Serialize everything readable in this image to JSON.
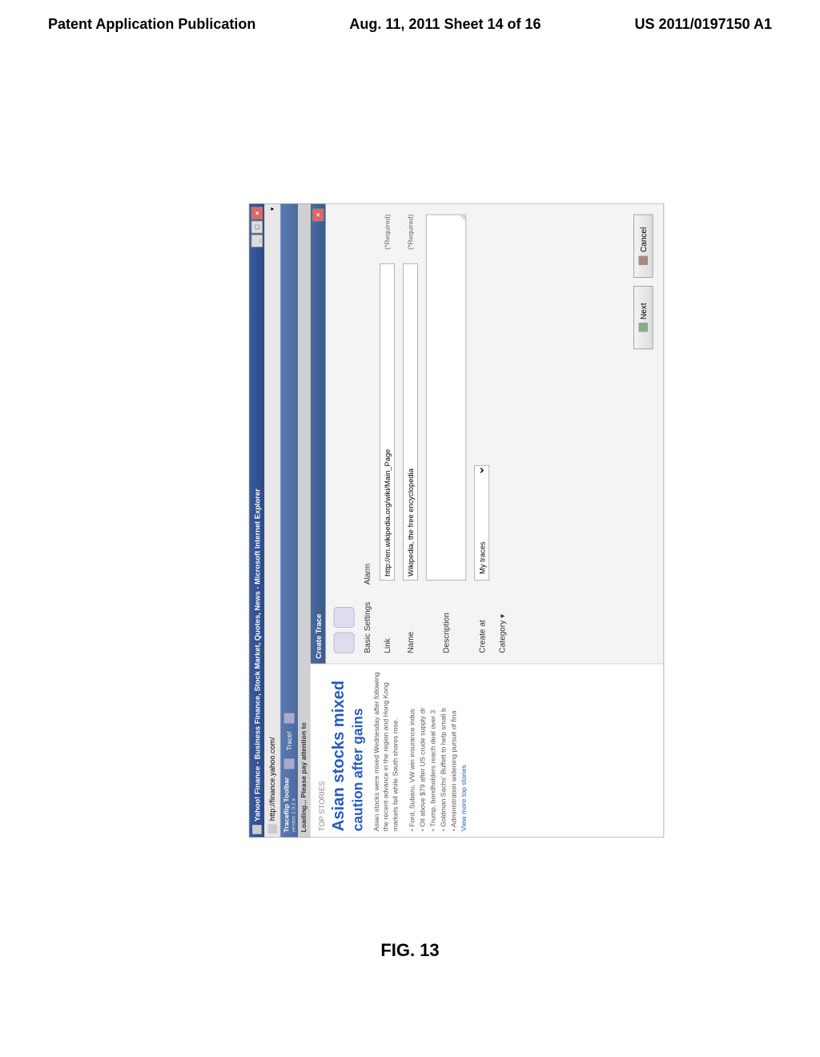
{
  "page_header": {
    "left": "Patent Application Publication",
    "center": "Aug. 11, 2011  Sheet 14 of 16",
    "right": "US 2011/0197150 A1"
  },
  "window": {
    "title": "Yahoo! Finance - Business Finance, Stock Market, Quotes, News - Microsoft Internet Explorer",
    "url": "http://finance.yahoo.com/"
  },
  "toolbar": {
    "name": "Traceflip Toolbar",
    "version": "version 1.0.2   a",
    "trace_label": "Trace!"
  },
  "statusbar": {
    "text": "Loading... Please pay attention to"
  },
  "news": {
    "section": "TOP STORIES",
    "headline1": "Asian stocks mixed",
    "headline2": "caution after gains",
    "body": "Asian stocks were mixed Wednesday after following the recent advance in the region and Hong Kong markets fell while South shares rose.",
    "items": [
      "Ford, Subaru, VW win insurance indus",
      "Oil above $79 after US crude supply dr",
      "Trump, bondholders reach deal over 3",
      "Goldman Sachs' Buffett to help small b",
      "Administration widening pursuit of fina"
    ],
    "viewmore": "View more top stories"
  },
  "dialog": {
    "title": "Create Trace",
    "tabs": {
      "basic": "Basic Settings",
      "alarm": "Alarm"
    },
    "fields": {
      "link_label": "Link",
      "link_value": "http://en.wikipedia.org/wiki/Main_Page",
      "name_label": "Name",
      "name_value": "Wikipedia, the free encyclopedia",
      "description_label": "Description",
      "description_value": "",
      "createat_label": "Create at",
      "createat_value": "My traces",
      "category_label": "Category ▾",
      "required": "(*Required)"
    },
    "buttons": {
      "next": "Next",
      "cancel": "Cancel"
    }
  },
  "figure_caption": "FIG. 13",
  "colors": {
    "titlebar_bg": "#2a4a8a",
    "link_blue": "#2a5ac0",
    "toolbar_bg": "#4a6aa0",
    "page_bg": "#ffffff"
  }
}
